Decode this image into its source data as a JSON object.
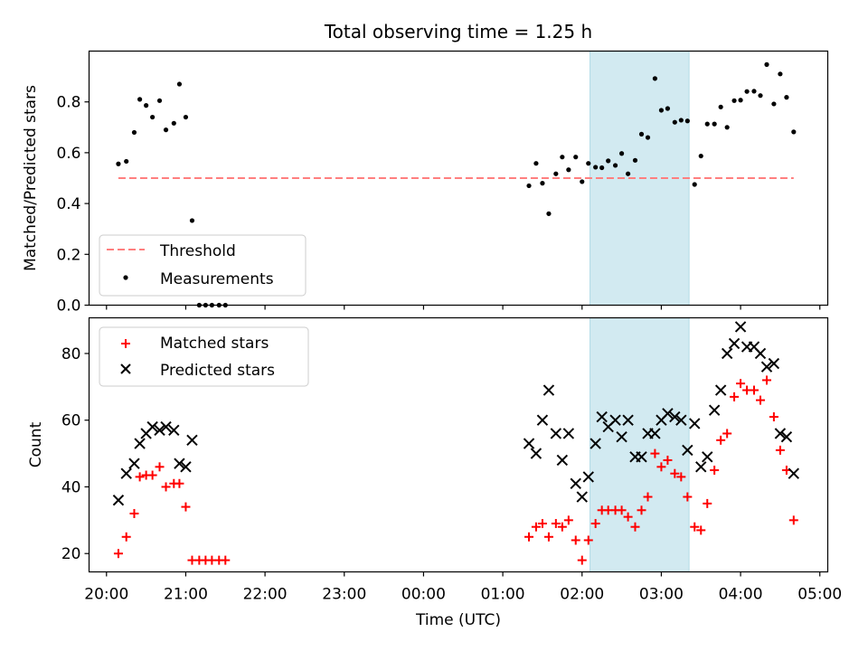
{
  "chart_data": [
    {
      "type": "scatter",
      "title": "Total observing time = 1.25 h",
      "xlabel": "",
      "ylabel": "Matched/Predicted stars",
      "x_unit": "time (UTC), decimal hours; values above 24 are after midnight",
      "xlim": [
        19.78,
        29.1
      ],
      "ylim": [
        0,
        1.0
      ],
      "yticks": [
        0.0,
        0.2,
        0.4,
        0.6,
        0.8
      ],
      "ytick_labels": [
        "0.0",
        "0.2",
        "0.4",
        "0.6",
        "0.8"
      ],
      "grid": false,
      "legend_position": "lower-left",
      "shaded_span": {
        "x0": 26.1,
        "x1": 27.35,
        "color": "#add8e6"
      },
      "threshold": {
        "name": "Threshold",
        "y": 0.5,
        "x0": 20.15,
        "x1": 28.67,
        "color": "#ff7f7f",
        "style": "dashed"
      },
      "series": [
        {
          "name": "Measurements",
          "color": "#000000",
          "marker": "dot",
          "points": [
            [
              20.15,
              0.556
            ],
            [
              20.25,
              0.566
            ],
            [
              20.35,
              0.68
            ],
            [
              20.42,
              0.81
            ],
            [
              20.5,
              0.786
            ],
            [
              20.58,
              0.74
            ],
            [
              20.67,
              0.805
            ],
            [
              20.75,
              0.69
            ],
            [
              20.85,
              0.716
            ],
            [
              20.92,
              0.87
            ],
            [
              21.0,
              0.74
            ],
            [
              21.08,
              0.333
            ],
            [
              21.17,
              0.0
            ],
            [
              21.25,
              0.0
            ],
            [
              21.33,
              0.0
            ],
            [
              21.42,
              0.0
            ],
            [
              21.5,
              0.0
            ],
            [
              25.33,
              0.47
            ],
            [
              25.42,
              0.558
            ],
            [
              25.5,
              0.48
            ],
            [
              25.58,
              0.36
            ],
            [
              25.67,
              0.517
            ],
            [
              25.75,
              0.583
            ],
            [
              25.83,
              0.533
            ],
            [
              25.92,
              0.583
            ],
            [
              26.0,
              0.486
            ],
            [
              26.08,
              0.558
            ],
            [
              26.17,
              0.543
            ],
            [
              26.25,
              0.541
            ],
            [
              26.33,
              0.568
            ],
            [
              26.42,
              0.55
            ],
            [
              26.5,
              0.597
            ],
            [
              26.58,
              0.517
            ],
            [
              26.67,
              0.57
            ],
            [
              26.75,
              0.673
            ],
            [
              26.83,
              0.66
            ],
            [
              26.92,
              0.892
            ],
            [
              27.0,
              0.767
            ],
            [
              27.08,
              0.774
            ],
            [
              27.17,
              0.72
            ],
            [
              27.25,
              0.728
            ],
            [
              27.33,
              0.725
            ],
            [
              27.42,
              0.475
            ],
            [
              27.5,
              0.587
            ],
            [
              27.58,
              0.713
            ],
            [
              27.67,
              0.713
            ],
            [
              27.75,
              0.78
            ],
            [
              27.83,
              0.7
            ],
            [
              27.92,
              0.805
            ],
            [
              28.0,
              0.807
            ],
            [
              28.08,
              0.841
            ],
            [
              28.17,
              0.842
            ],
            [
              28.25,
              0.825
            ],
            [
              28.33,
              0.947
            ],
            [
              28.42,
              0.792
            ],
            [
              28.5,
              0.91
            ],
            [
              28.58,
              0.818
            ],
            [
              28.67,
              0.682
            ]
          ]
        }
      ]
    },
    {
      "type": "scatter",
      "title": "",
      "xlabel": "Time (UTC)",
      "ylabel": "Count",
      "x_unit": "time (UTC), decimal hours; values above 24 are after midnight",
      "xlim": [
        19.78,
        29.1
      ],
      "ylim": [
        14.5,
        90.7
      ],
      "yticks": [
        20,
        40,
        60,
        80
      ],
      "ytick_labels": [
        "20",
        "40",
        "60",
        "80"
      ],
      "xticks": [
        20,
        21,
        22,
        23,
        24,
        25,
        26,
        27,
        28,
        29
      ],
      "xtick_labels": [
        "20:00",
        "21:00",
        "22:00",
        "23:00",
        "00:00",
        "01:00",
        "02:00",
        "03:00",
        "04:00",
        "05:00"
      ],
      "grid": false,
      "legend_position": "upper-left",
      "shaded_span": {
        "x0": 26.1,
        "x1": 27.35,
        "color": "#add8e6"
      },
      "series": [
        {
          "name": "Matched stars",
          "color": "#ff0000",
          "marker": "plus",
          "points": [
            [
              20.15,
              20
            ],
            [
              20.25,
              25
            ],
            [
              20.35,
              32
            ],
            [
              20.42,
              43
            ],
            [
              20.5,
              43.5
            ],
            [
              20.58,
              43.5
            ],
            [
              20.67,
              46
            ],
            [
              20.75,
              40
            ],
            [
              20.85,
              41
            ],
            [
              20.92,
              41
            ],
            [
              21.0,
              34
            ],
            [
              21.08,
              18
            ],
            [
              21.17,
              18
            ],
            [
              21.25,
              18
            ],
            [
              21.33,
              18
            ],
            [
              21.42,
              18
            ],
            [
              21.5,
              18
            ],
            [
              25.33,
              25
            ],
            [
              25.42,
              28
            ],
            [
              25.5,
              29
            ],
            [
              25.58,
              25
            ],
            [
              25.67,
              29
            ],
            [
              25.75,
              28
            ],
            [
              25.83,
              30
            ],
            [
              25.92,
              24
            ],
            [
              26.0,
              18
            ],
            [
              26.08,
              24
            ],
            [
              26.17,
              29
            ],
            [
              26.25,
              33
            ],
            [
              26.33,
              33
            ],
            [
              26.42,
              33
            ],
            [
              26.5,
              33
            ],
            [
              26.58,
              31
            ],
            [
              26.67,
              28
            ],
            [
              26.75,
              33
            ],
            [
              26.83,
              37
            ],
            [
              26.92,
              50
            ],
            [
              27.0,
              46
            ],
            [
              27.08,
              48
            ],
            [
              27.17,
              44
            ],
            [
              27.25,
              43
            ],
            [
              27.33,
              37
            ],
            [
              27.42,
              28
            ],
            [
              27.5,
              27
            ],
            [
              27.58,
              35
            ],
            [
              27.67,
              45
            ],
            [
              27.75,
              54
            ],
            [
              27.83,
              56
            ],
            [
              27.92,
              67
            ],
            [
              28.0,
              71
            ],
            [
              28.08,
              69
            ],
            [
              28.17,
              69
            ],
            [
              28.25,
              66
            ],
            [
              28.33,
              72
            ],
            [
              28.42,
              61
            ],
            [
              28.5,
              51
            ],
            [
              28.58,
              45
            ],
            [
              28.67,
              30
            ]
          ]
        },
        {
          "name": "Predicted stars",
          "color": "#000000",
          "marker": "x",
          "points": [
            [
              20.15,
              36
            ],
            [
              20.25,
              44
            ],
            [
              20.35,
              47
            ],
            [
              20.42,
              53
            ],
            [
              20.5,
              56
            ],
            [
              20.58,
              58
            ],
            [
              20.67,
              57
            ],
            [
              20.75,
              58
            ],
            [
              20.85,
              57
            ],
            [
              20.92,
              47
            ],
            [
              21.0,
              46
            ],
            [
              21.08,
              54
            ],
            [
              25.33,
              53
            ],
            [
              25.42,
              50
            ],
            [
              25.5,
              60
            ],
            [
              25.58,
              69
            ],
            [
              25.67,
              56
            ],
            [
              25.75,
              48
            ],
            [
              25.83,
              56
            ],
            [
              25.92,
              41
            ],
            [
              26.0,
              37
            ],
            [
              26.08,
              43
            ],
            [
              26.17,
              53
            ],
            [
              26.25,
              61
            ],
            [
              26.33,
              58
            ],
            [
              26.42,
              60
            ],
            [
              26.5,
              55
            ],
            [
              26.58,
              60
            ],
            [
              26.67,
              49
            ],
            [
              26.75,
              49
            ],
            [
              26.83,
              56
            ],
            [
              26.92,
              56
            ],
            [
              27.0,
              60
            ],
            [
              27.08,
              62
            ],
            [
              27.17,
              61
            ],
            [
              27.25,
              60
            ],
            [
              27.33,
              51
            ],
            [
              27.42,
              59
            ],
            [
              27.5,
              46
            ],
            [
              27.58,
              49
            ],
            [
              27.67,
              63
            ],
            [
              27.75,
              69
            ],
            [
              27.83,
              80
            ],
            [
              27.92,
              83
            ],
            [
              28.0,
              88
            ],
            [
              28.08,
              82
            ],
            [
              28.17,
              82
            ],
            [
              28.25,
              80
            ],
            [
              28.33,
              76
            ],
            [
              28.42,
              77
            ],
            [
              28.5,
              56
            ],
            [
              28.58,
              55
            ],
            [
              28.67,
              44
            ]
          ]
        }
      ]
    }
  ]
}
